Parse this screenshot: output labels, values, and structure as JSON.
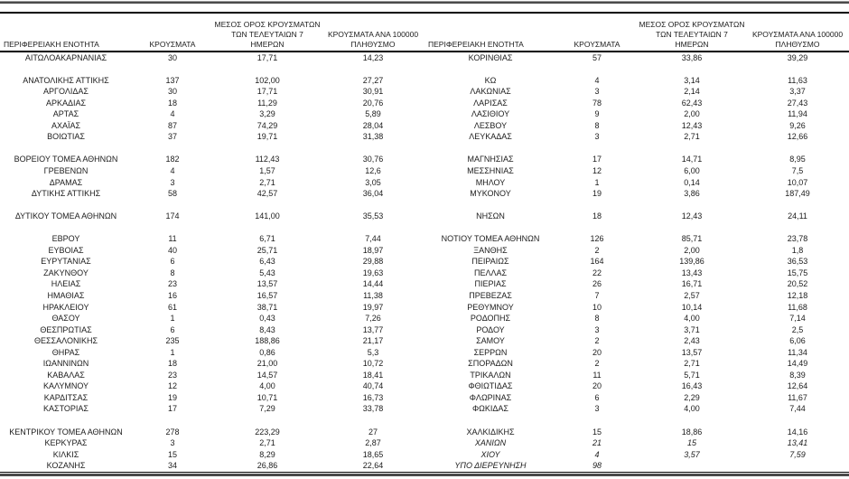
{
  "table": {
    "headers": {
      "region": "ΠΕΡΙΦΕΡΕΙΑΚΗ ΕΝΟΤΗΤΑ",
      "cases": "ΚΡΟΥΣΜΑΤΑ",
      "avg7_line1": "ΜΕΣΟΣ ΟΡΟΣ ΚΡΟΥΣΜΑΤΩΝ",
      "avg7_line2": "ΤΩΝ ΤΕΛΕΥΤΑΙΩΝ 7",
      "avg7_line3": "ΗΜΕΡΩΝ",
      "per100k_line1": "ΚΡΟΥΣΜΑΤΑ ΑΝΑ 100000",
      "per100k_line2": "ΠΛΗΘΥΣΜΟ"
    },
    "left_rows": [
      {
        "region": "ΑΙΤΩΛΟΑΚΑΡΝΑΝΙΑΣ",
        "cases": "30",
        "avg7": "17,71",
        "per100k": "14,23"
      },
      {
        "blank": true
      },
      {
        "region": "ΑΝΑΤΟΛΙΚΗΣ ΑΤΤΙΚΗΣ",
        "cases": "137",
        "avg7": "102,00",
        "per100k": "27,27"
      },
      {
        "region": "ΑΡΓΟΛΙΔΑΣ",
        "cases": "30",
        "avg7": "17,71",
        "per100k": "30,91"
      },
      {
        "region": "ΑΡΚΑΔΙΑΣ",
        "cases": "18",
        "avg7": "11,29",
        "per100k": "20,76"
      },
      {
        "region": "ΑΡΤΑΣ",
        "cases": "4",
        "avg7": "3,29",
        "per100k": "5,89"
      },
      {
        "region": "ΑΧΑΪΑΣ",
        "cases": "87",
        "avg7": "74,29",
        "per100k": "28,04"
      },
      {
        "region": "ΒΟΙΩΤΙΑΣ",
        "cases": "37",
        "avg7": "19,71",
        "per100k": "31,38"
      },
      {
        "blank": true
      },
      {
        "region": "ΒΟΡΕΙΟΥ ΤΟΜΕΑ ΑΘΗΝΩΝ",
        "cases": "182",
        "avg7": "112,43",
        "per100k": "30,76"
      },
      {
        "region": "ΓΡΕΒΕΝΩΝ",
        "cases": "4",
        "avg7": "1,57",
        "per100k": "12,6"
      },
      {
        "region": "ΔΡΑΜΑΣ",
        "cases": "3",
        "avg7": "2,71",
        "per100k": "3,05"
      },
      {
        "region": "ΔΥΤΙΚΗΣ ΑΤΤΙΚΗΣ",
        "cases": "58",
        "avg7": "42,57",
        "per100k": "36,04"
      },
      {
        "blank": true
      },
      {
        "region": "ΔΥΤΙΚΟΥ ΤΟΜΕΑ ΑΘΗΝΩΝ",
        "cases": "174",
        "avg7": "141,00",
        "per100k": "35,53"
      },
      {
        "blank": true
      },
      {
        "region": "ΕΒΡΟΥ",
        "cases": "11",
        "avg7": "6,71",
        "per100k": "7,44"
      },
      {
        "region": "ΕΥΒΟΙΑΣ",
        "cases": "40",
        "avg7": "25,71",
        "per100k": "18,97"
      },
      {
        "region": "ΕΥΡΥΤΑΝΙΑΣ",
        "cases": "6",
        "avg7": "6,43",
        "per100k": "29,88"
      },
      {
        "region": "ΖΑΚΥΝΘΟΥ",
        "cases": "8",
        "avg7": "5,43",
        "per100k": "19,63"
      },
      {
        "region": "ΗΛΕΙΑΣ",
        "cases": "23",
        "avg7": "13,57",
        "per100k": "14,44"
      },
      {
        "region": "ΗΜΑΘΙΑΣ",
        "cases": "16",
        "avg7": "16,57",
        "per100k": "11,38"
      },
      {
        "region": "ΗΡΑΚΛΕΙΟΥ",
        "cases": "61",
        "avg7": "38,71",
        "per100k": "19,97"
      },
      {
        "region": "ΘΑΣΟΥ",
        "cases": "1",
        "avg7": "0,43",
        "per100k": "7,26"
      },
      {
        "region": "ΘΕΣΠΡΩΤΙΑΣ",
        "cases": "6",
        "avg7": "8,43",
        "per100k": "13,77"
      },
      {
        "region": "ΘΕΣΣΑΛΟΝΙΚΗΣ",
        "cases": "235",
        "avg7": "188,86",
        "per100k": "21,17"
      },
      {
        "region": "ΘΗΡΑΣ",
        "cases": "1",
        "avg7": "0,86",
        "per100k": "5,3"
      },
      {
        "region": "ΙΩΑΝΝΙΝΩΝ",
        "cases": "18",
        "avg7": "21,00",
        "per100k": "10,72"
      },
      {
        "region": "ΚΑΒΑΛΑΣ",
        "cases": "23",
        "avg7": "14,57",
        "per100k": "18,41"
      },
      {
        "region": "ΚΑΛΥΜΝΟΥ",
        "cases": "12",
        "avg7": "4,00",
        "per100k": "40,74"
      },
      {
        "region": "ΚΑΡΔΙΤΣΑΣ",
        "cases": "19",
        "avg7": "10,71",
        "per100k": "16,73"
      },
      {
        "region": "ΚΑΣΤΟΡΙΑΣ",
        "cases": "17",
        "avg7": "7,29",
        "per100k": "33,78"
      },
      {
        "blank": true
      },
      {
        "region": "ΚΕΝΤΡΙΚΟΥ ΤΟΜΕΑ ΑΘΗΝΩΝ",
        "cases": "278",
        "avg7": "223,29",
        "per100k": "27"
      },
      {
        "region": "ΚΕΡΚΥΡΑΣ",
        "cases": "3",
        "avg7": "2,71",
        "per100k": "2,87"
      },
      {
        "region": "ΚΙΛΚΙΣ",
        "cases": "15",
        "avg7": "8,29",
        "per100k": "18,65"
      },
      {
        "region": "ΚΟΖΑΝΗΣ",
        "cases": "34",
        "avg7": "26,86",
        "per100k": "22,64"
      }
    ],
    "right_rows": [
      {
        "region": "ΚΟΡΙΝΘΙΑΣ",
        "cases": "57",
        "avg7": "33,86",
        "per100k": "39,29"
      },
      {
        "blank": true
      },
      {
        "region": "ΚΩ",
        "cases": "4",
        "avg7": "3,14",
        "per100k": "11,63"
      },
      {
        "region": "ΛΑΚΩΝΙΑΣ",
        "cases": "3",
        "avg7": "2,14",
        "per100k": "3,37"
      },
      {
        "region": "ΛΑΡΙΣΑΣ",
        "cases": "78",
        "avg7": "62,43",
        "per100k": "27,43"
      },
      {
        "region": "ΛΑΣΙΘΙΟΥ",
        "cases": "9",
        "avg7": "2,00",
        "per100k": "11,94"
      },
      {
        "region": "ΛΕΣΒΟΥ",
        "cases": "8",
        "avg7": "12,43",
        "per100k": "9,26"
      },
      {
        "region": "ΛΕΥΚΑΔΑΣ",
        "cases": "3",
        "avg7": "2,71",
        "per100k": "12,66"
      },
      {
        "blank": true
      },
      {
        "region": "ΜΑΓΝΗΣΙΑΣ",
        "cases": "17",
        "avg7": "14,71",
        "per100k": "8,95"
      },
      {
        "region": "ΜΕΣΣΗΝΙΑΣ",
        "cases": "12",
        "avg7": "6,00",
        "per100k": "7,5"
      },
      {
        "region": "ΜΗΛΟΥ",
        "cases": "1",
        "avg7": "0,14",
        "per100k": "10,07"
      },
      {
        "region": "ΜΥΚΟΝΟΥ",
        "cases": "19",
        "avg7": "3,86",
        "per100k": "187,49"
      },
      {
        "blank": true
      },
      {
        "region": "ΝΗΣΩΝ",
        "cases": "18",
        "avg7": "12,43",
        "per100k": "24,11"
      },
      {
        "blank": true
      },
      {
        "region": "ΝΟΤΙΟΥ ΤΟΜΕΑ ΑΘΗΝΩΝ",
        "cases": "126",
        "avg7": "85,71",
        "per100k": "23,78"
      },
      {
        "region": "ΞΑΝΘΗΣ",
        "cases": "2",
        "avg7": "2,00",
        "per100k": "1,8"
      },
      {
        "region": "ΠΕΙΡΑΙΩΣ",
        "cases": "164",
        "avg7": "139,86",
        "per100k": "36,53"
      },
      {
        "region": "ΠΕΛΛΑΣ",
        "cases": "22",
        "avg7": "13,43",
        "per100k": "15,75"
      },
      {
        "region": "ΠΙΕΡΙΑΣ",
        "cases": "26",
        "avg7": "16,71",
        "per100k": "20,52"
      },
      {
        "region": "ΠΡΕΒΕΖΑΣ",
        "cases": "7",
        "avg7": "2,57",
        "per100k": "12,18"
      },
      {
        "region": "ΡΕΘΥΜΝΟΥ",
        "cases": "10",
        "avg7": "10,14",
        "per100k": "11,68"
      },
      {
        "region": "ΡΟΔΟΠΗΣ",
        "cases": "8",
        "avg7": "4,00",
        "per100k": "7,14"
      },
      {
        "region": "ΡΟΔΟΥ",
        "cases": "3",
        "avg7": "3,71",
        "per100k": "2,5"
      },
      {
        "region": "ΣΑΜΟΥ",
        "cases": "2",
        "avg7": "2,43",
        "per100k": "6,06"
      },
      {
        "region": "ΣΕΡΡΩΝ",
        "cases": "20",
        "avg7": "13,57",
        "per100k": "11,34"
      },
      {
        "region": "ΣΠΟΡΑΔΩΝ",
        "cases": "2",
        "avg7": "2,71",
        "per100k": "14,49"
      },
      {
        "region": "ΤΡΙΚΑΛΩΝ",
        "cases": "11",
        "avg7": "5,71",
        "per100k": "8,39"
      },
      {
        "region": "ΦΘΙΩΤΙΔΑΣ",
        "cases": "20",
        "avg7": "16,43",
        "per100k": "12,64"
      },
      {
        "region": "ΦΛΩΡΙΝΑΣ",
        "cases": "6",
        "avg7": "2,29",
        "per100k": "11,67"
      },
      {
        "region": "ΦΩΚΙΔΑΣ",
        "cases": "3",
        "avg7": "4,00",
        "per100k": "7,44"
      },
      {
        "blank": true
      },
      {
        "region": "ΧΑΛΚΙΔΙΚΗΣ",
        "cases": "15",
        "avg7": "18,86",
        "per100k": "14,16"
      },
      {
        "region": "ΧΑΝΙΩΝ",
        "cases": "21",
        "avg7": "15",
        "per100k": "13,41",
        "italic": true
      },
      {
        "region": "ΧΙΟΥ",
        "cases": "4",
        "avg7": "3,57",
        "per100k": "7,59",
        "italic": true
      },
      {
        "region": "ΥΠΟ ΔΙΕΡΕΥΝΗΣΗ",
        "cases": "98",
        "avg7": "",
        "per100k": "",
        "italic": true
      }
    ],
    "colors": {
      "text": "#1c1c1c",
      "rule_thin": "#000000",
      "rule_thick": "#4a4a4a",
      "background": "#ffffff"
    }
  }
}
